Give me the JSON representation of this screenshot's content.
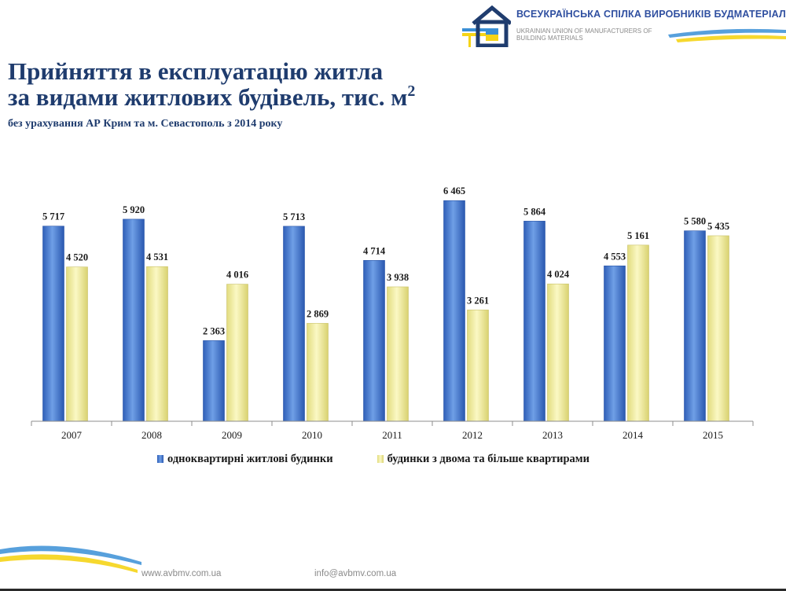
{
  "header": {
    "org_name_ua": "ВСЕУКРАЇНСЬКА СПІЛКА ВИРОБНИКІВ БУДМАТЕРІАЛІВ",
    "org_name_en": "UKRAINIAN UNION OF MANUFACTURERS OF BUILDING MATERIALS",
    "logo_icon": "house-logo-icon"
  },
  "slide": {
    "title_line1": "Прийняття в експлуатацію житла",
    "title_line2": "за видами житлових будівель, тис. м",
    "title_sup": "2",
    "subtitle": "без урахування АР Крим та м. Севастополь з 2014 року"
  },
  "chart_data": {
    "type": "bar",
    "categories": [
      "2007",
      "2008",
      "2009",
      "2010",
      "2011",
      "2012",
      "2013",
      "2014",
      "2015"
    ],
    "series": [
      {
        "name": "одноквартирні житлові будинки",
        "values": [
          5717,
          5920,
          2363,
          5713,
          4714,
          6465,
          5864,
          4553,
          5580
        ],
        "labels": [
          "5 717",
          "5 920",
          "2 363",
          "5 713",
          "4 714",
          "6 465",
          "5 864",
          "4 553",
          "5 580"
        ],
        "color": "#4a7fd4"
      },
      {
        "name": "будинки з двома та більше квартирами",
        "values": [
          4520,
          4531,
          4016,
          2869,
          3938,
          3261,
          4024,
          5161,
          5435
        ],
        "labels": [
          "4 520",
          "4 531",
          "4 016",
          "2 869",
          "3 938",
          "3 261",
          "4 024",
          "5 161",
          "5 435"
        ],
        "color": "#f3eea0"
      }
    ],
    "ylim": [
      0,
      7000
    ],
    "grid": false,
    "legend": "bottom"
  },
  "footer": {
    "website": "www.avbmv.com.ua",
    "email": "info@avbmv.com.ua"
  },
  "colors": {
    "title": "#1f3c6e",
    "org_name": "#2f4fa0",
    "flag_blue": "#3a8fd6",
    "flag_yellow": "#f5d417"
  }
}
